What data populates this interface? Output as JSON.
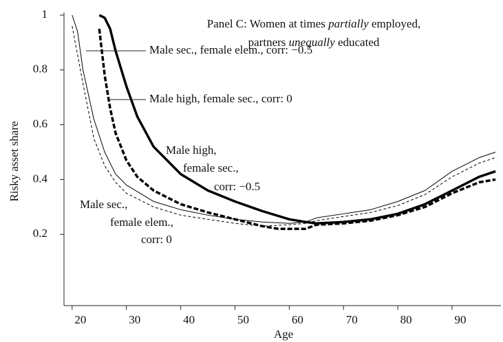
{
  "chart_data": {
    "type": "line",
    "title": [
      [
        {
          "text": "Panel C: Women at times ",
          "italic": false
        },
        {
          "text": "partially",
          "italic": true
        },
        {
          "text": " employed,",
          "italic": false
        }
      ],
      [
        {
          "text": "partners ",
          "italic": false
        },
        {
          "text": "unequally",
          "italic": true
        },
        {
          "text": " educated",
          "italic": false
        }
      ]
    ],
    "x_label": "Age",
    "y_label": "Risky asset share",
    "xlim": [
      18.5,
      99
    ],
    "ylim": [
      -0.06,
      1.0
    ],
    "xticks": [
      20,
      30,
      40,
      50,
      60,
      70,
      80,
      90
    ],
    "yticks": [
      0.2,
      0.4,
      0.6,
      0.8,
      1
    ],
    "annotations": [
      [
        "Male sec., female elem., corr: −0.5"
      ],
      [
        "Male high, female sec., corr: 0"
      ],
      [
        "Male high,",
        "female sec.,",
        "corr: −0.5"
      ],
      [
        "Male sec.,",
        "female elem.,",
        "corr: 0"
      ]
    ],
    "series": [
      {
        "color": "#000000",
        "width": 1,
        "dashed": false,
        "x": [
          20,
          21,
          22,
          24,
          26,
          28,
          30,
          35,
          40,
          45,
          50,
          55,
          60,
          63,
          65,
          70,
          75,
          80,
          85,
          90,
          95,
          98
        ],
        "values": [
          1.0,
          0.94,
          0.8,
          0.62,
          0.5,
          0.42,
          0.38,
          0.32,
          0.29,
          0.27,
          0.255,
          0.245,
          0.24,
          0.245,
          0.26,
          0.275,
          0.29,
          0.32,
          0.36,
          0.43,
          0.48,
          0.5
        ]
      },
      {
        "color": "#000000",
        "width": 1,
        "dashed": true,
        "x": [
          20,
          22,
          24,
          26,
          28,
          30,
          35,
          40,
          45,
          50,
          55,
          60,
          63,
          65,
          70,
          75,
          80,
          85,
          90,
          95,
          98
        ],
        "values": [
          0.96,
          0.75,
          0.55,
          0.45,
          0.39,
          0.35,
          0.3,
          0.27,
          0.255,
          0.24,
          0.23,
          0.235,
          0.24,
          0.25,
          0.265,
          0.28,
          0.305,
          0.345,
          0.41,
          0.46,
          0.48
        ]
      },
      {
        "color": "#000000",
        "width": 3.5,
        "dashed": true,
        "x": [
          25,
          26,
          27,
          28,
          30,
          32,
          35,
          40,
          45,
          50,
          55,
          58,
          63,
          65,
          70,
          75,
          80,
          85,
          90,
          95,
          98
        ],
        "values": [
          0.95,
          0.78,
          0.66,
          0.57,
          0.47,
          0.41,
          0.36,
          0.31,
          0.28,
          0.255,
          0.23,
          0.22,
          0.22,
          0.235,
          0.24,
          0.25,
          0.27,
          0.3,
          0.35,
          0.39,
          0.4
        ]
      },
      {
        "color": "#000000",
        "width": 3.5,
        "dashed": false,
        "x": [
          25,
          26,
          27,
          28,
          30,
          32,
          35,
          40,
          45,
          50,
          55,
          60,
          63,
          65,
          70,
          75,
          80,
          85,
          90,
          95,
          98
        ],
        "values": [
          1.0,
          0.99,
          0.95,
          0.87,
          0.74,
          0.63,
          0.52,
          0.42,
          0.36,
          0.32,
          0.285,
          0.255,
          0.245,
          0.24,
          0.245,
          0.255,
          0.275,
          0.31,
          0.36,
          0.41,
          0.43
        ]
      }
    ]
  }
}
